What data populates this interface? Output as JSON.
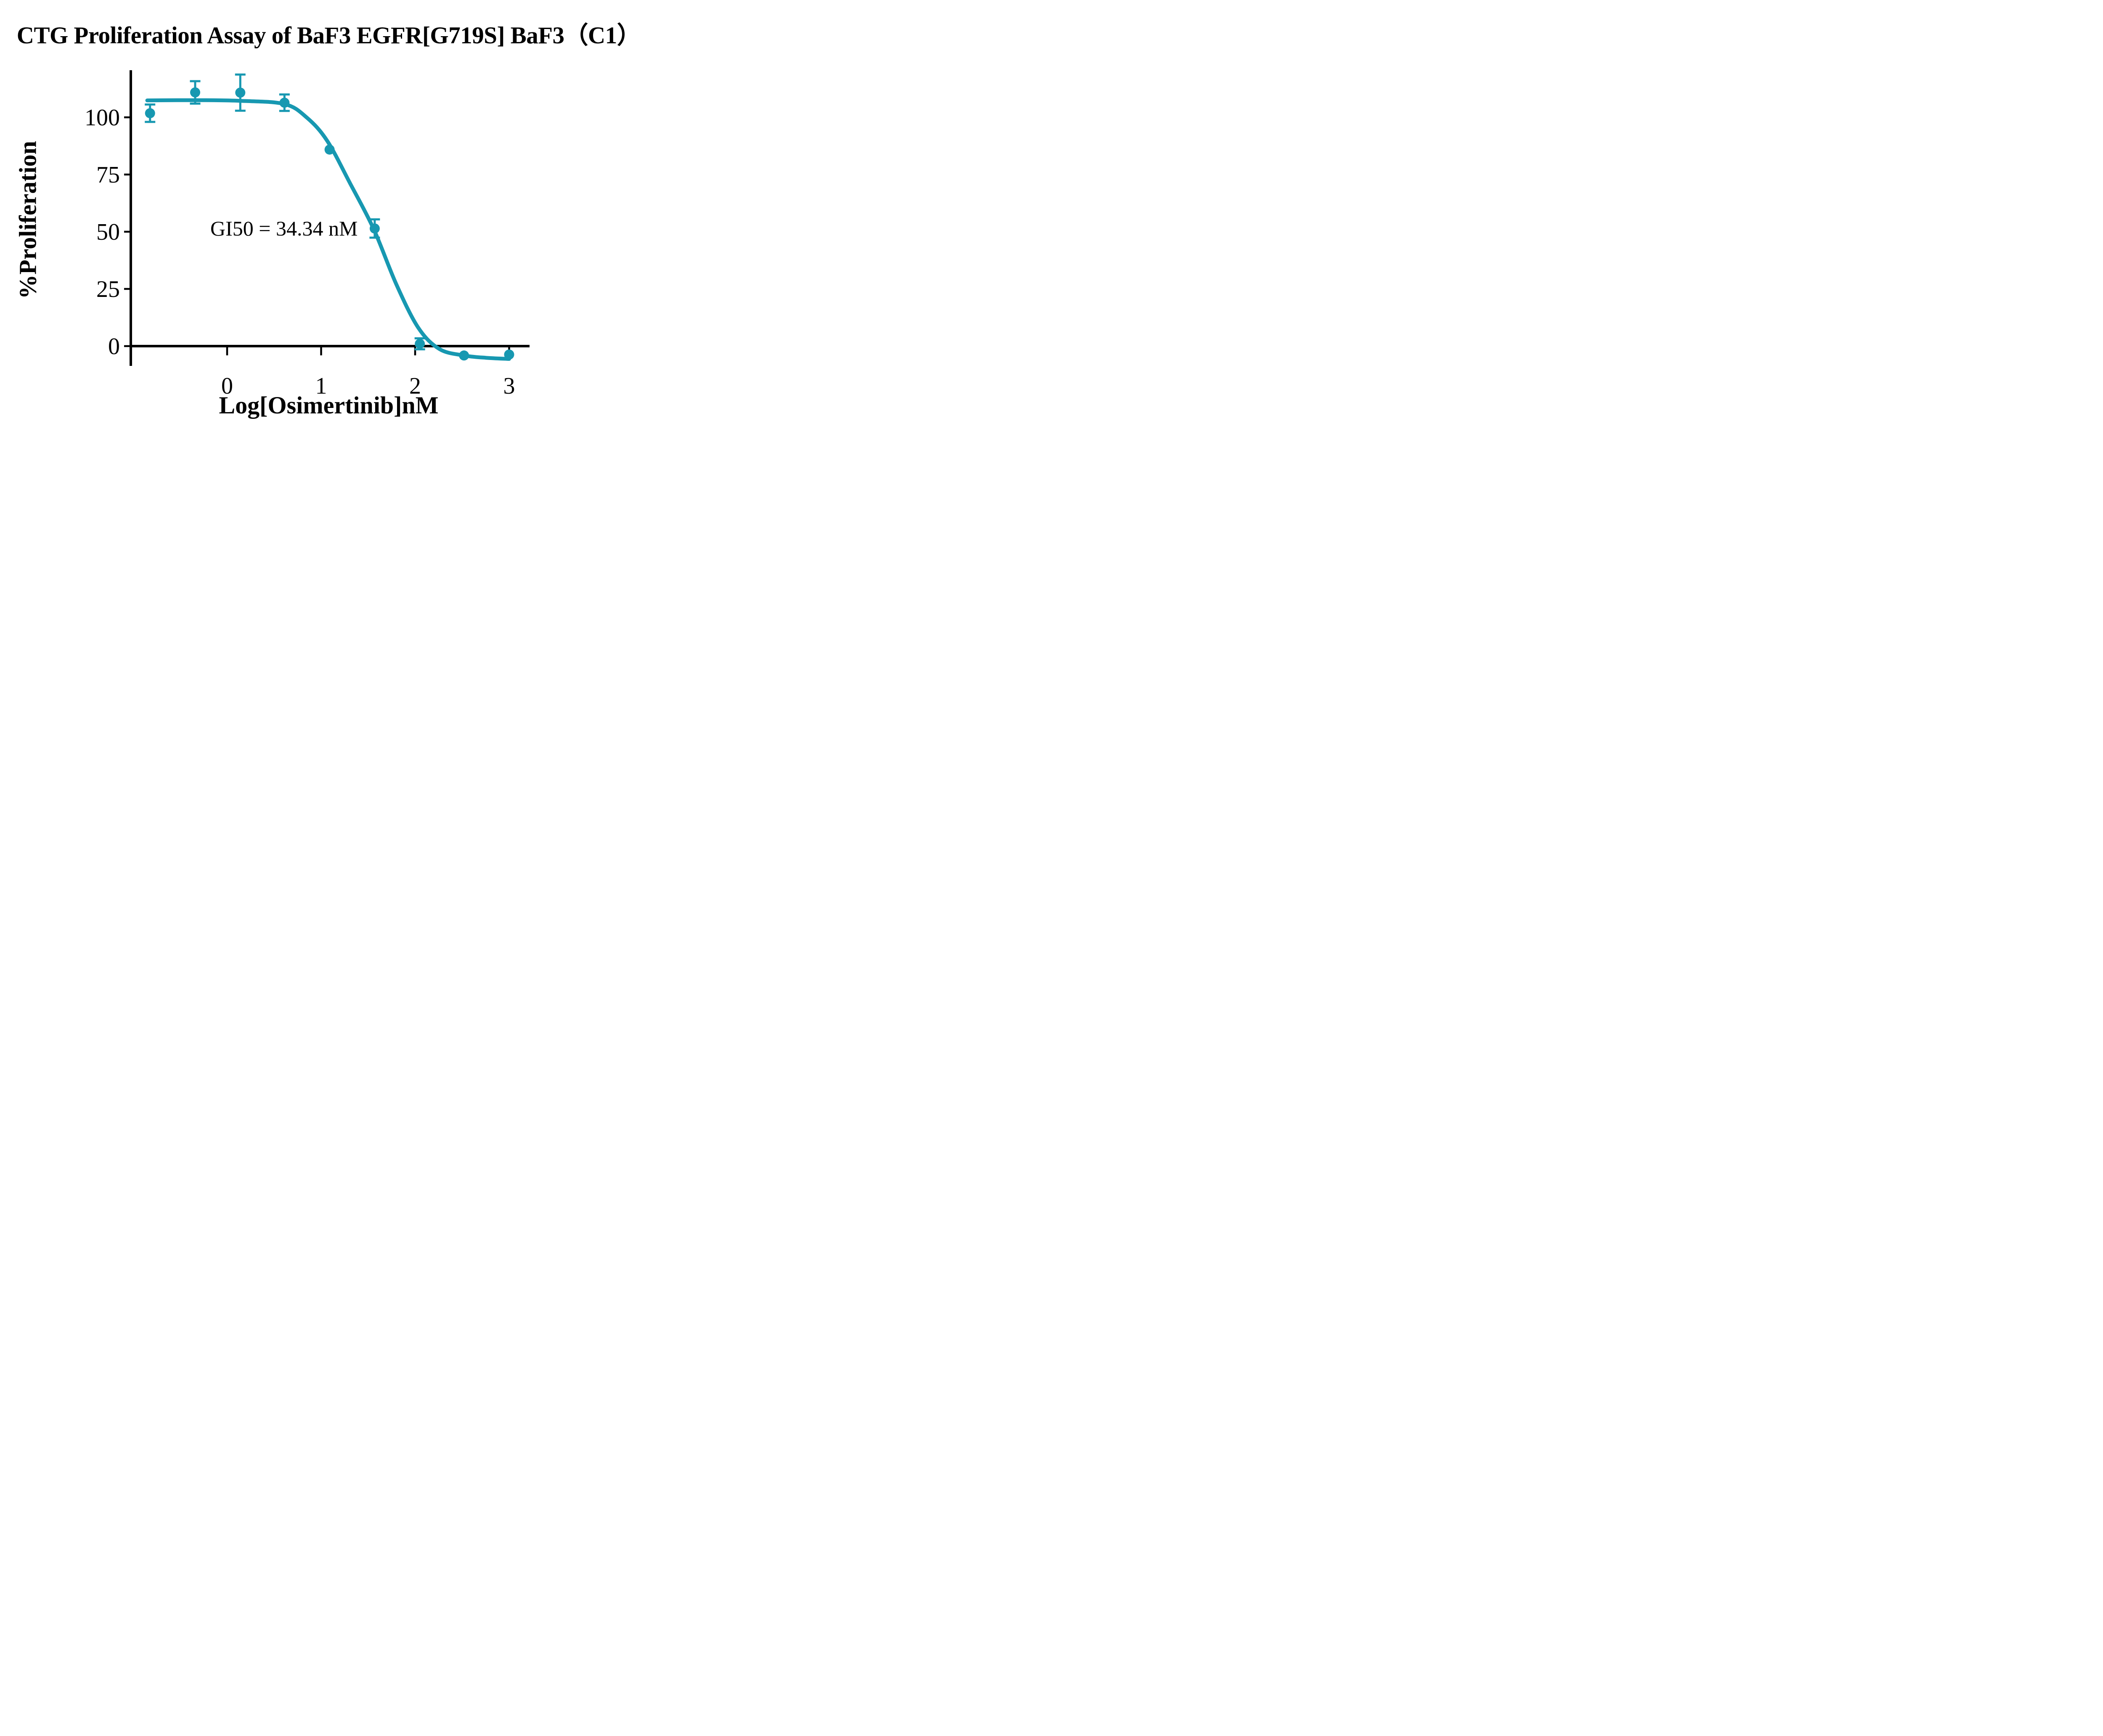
{
  "chart_data": {
    "type": "scatter",
    "title": "CTG Proliferation Assay of BaF3 EGFR[G719S] BaF3（C1）",
    "xlabel": "Log[Osimertinib]nM",
    "ylabel": "%Proliferation",
    "annotation": "GI50 = 34.34 nM",
    "axis_color": "#000000",
    "background_color": "#ffffff",
    "grid": false,
    "legend": false,
    "xlim": [
      -1.02,
      3.22
    ],
    "ylim": [
      -8.6,
      120.5
    ],
    "x_ticks": [
      0,
      1,
      2,
      3
    ],
    "y_ticks": [
      0,
      25,
      50,
      75,
      100
    ],
    "series": [
      {
        "name": "BaF3 EGFR[G719S] (C1)",
        "color": "#1798b1",
        "marker": "circle",
        "points": [
          {
            "x": -0.82,
            "y": 101.8,
            "err": 3.8
          },
          {
            "x": -0.34,
            "y": 110.9,
            "err": 4.9
          },
          {
            "x": 0.14,
            "y": 110.8,
            "err": 7.9
          },
          {
            "x": 0.61,
            "y": 106.4,
            "err": 3.6
          },
          {
            "x": 1.09,
            "y": 85.9,
            "err": 0
          },
          {
            "x": 1.57,
            "y": 51.4,
            "err": 4.0
          },
          {
            "x": 2.05,
            "y": 1.0,
            "err": 2.4
          },
          {
            "x": 2.52,
            "y": -4.1,
            "err": 0
          },
          {
            "x": 3.0,
            "y": -3.7,
            "err": 0
          }
        ],
        "fit": {
          "model": "sigmoidal dose-response (fitted curve sampled from figure)",
          "gi50_nM": 34.34,
          "top": 107.5,
          "bottom": -5.6
        },
        "fit_curve_points": [
          [
            -0.85,
            107.4
          ],
          [
            -0.3,
            107.5
          ],
          [
            0.14,
            107.2
          ],
          [
            0.61,
            105.8
          ],
          [
            0.85,
            99.8
          ],
          [
            1.065,
            89.7
          ],
          [
            1.31,
            71.0
          ],
          [
            1.561,
            51.0
          ],
          [
            1.8,
            27.0
          ],
          [
            2.034,
            8.0
          ],
          [
            2.26,
            -1.3
          ],
          [
            2.52,
            -4.1
          ],
          [
            2.75,
            -5.1
          ],
          [
            3.0,
            -5.6
          ]
        ]
      }
    ]
  }
}
